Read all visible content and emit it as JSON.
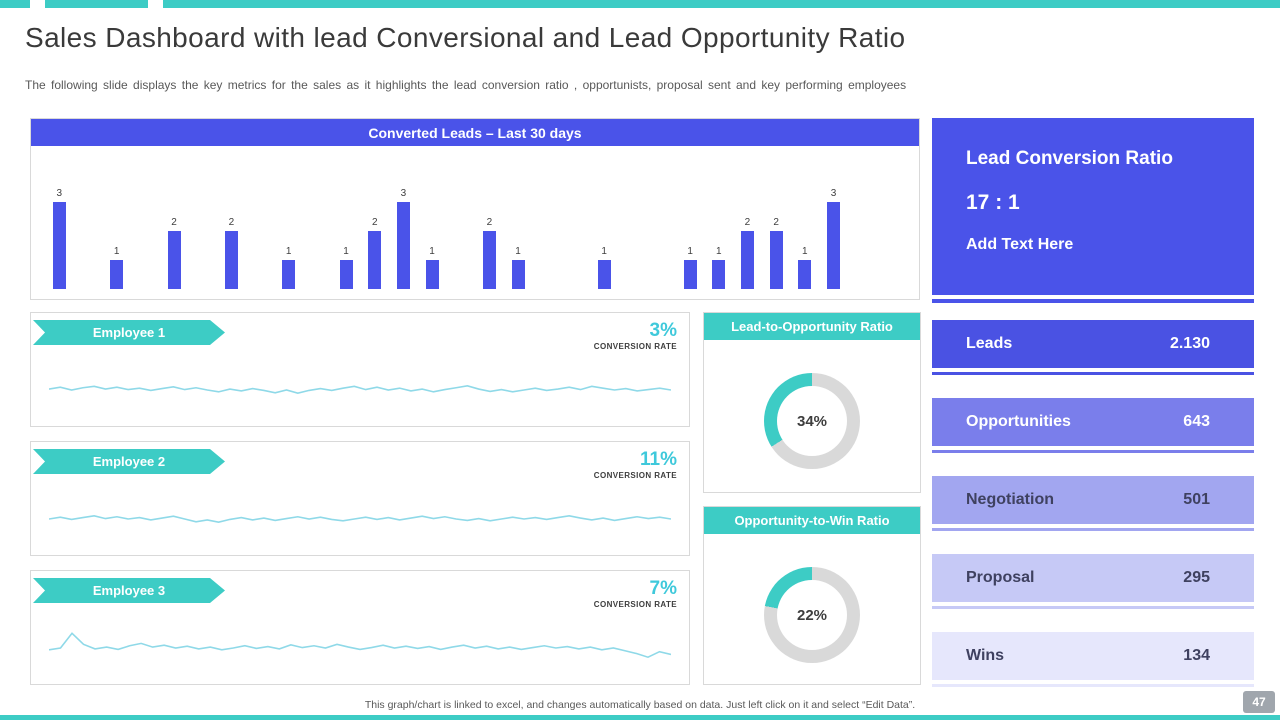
{
  "slide": {
    "title": "Sales Dashboard with lead Conversional and Lead Opportunity Ratio",
    "subtitle": "The following slide displays the key metrics for the sales as it highlights the lead conversion ratio , opportunists, proposal sent and key performing employees",
    "footer_note": "This graph/chart is linked to excel, and changes automatically based on data. Just left click on it and select “Edit Data”.",
    "page_number": "47"
  },
  "colors": {
    "accent_teal": "#3DCCC5",
    "accent_blue": "#4A53E9",
    "sparkline": "#8FD9E8",
    "rate_text": "#3FC9DB",
    "gauge_track": "#D9D9D9"
  },
  "chart_data": [
    {
      "id": "converted-leads",
      "type": "bar",
      "title": "Converted Leads – Last 30 days",
      "x_unit": "day (last 30 days, unlabeled)",
      "values": [
        3,
        0,
        1,
        0,
        2,
        0,
        2,
        0,
        1,
        0,
        1,
        2,
        3,
        1,
        0,
        2,
        1,
        0,
        0,
        1,
        0,
        0,
        1,
        1,
        2,
        2,
        1,
        3,
        0,
        0
      ],
      "ylim": [
        0,
        3
      ],
      "bar_color": "#4A53E9",
      "data_labels": true,
      "grid": false,
      "legend": false
    },
    {
      "id": "employee-1",
      "type": "line",
      "name": "Employee 1",
      "metric_value": "3%",
      "metric_label": "CONVERSION RATE",
      "line_color": "#8FD9E8",
      "values": [
        52,
        56,
        50,
        55,
        58,
        52,
        56,
        51,
        54,
        49,
        53,
        57,
        51,
        55,
        50,
        46,
        52,
        48,
        53,
        49,
        44,
        50,
        43,
        49,
        53,
        49,
        54,
        58,
        51,
        56,
        50,
        54,
        48,
        52,
        46,
        51,
        55,
        59,
        52,
        47,
        51,
        46,
        50,
        54,
        49,
        52,
        56,
        51,
        58,
        54,
        50,
        53,
        48,
        51,
        54,
        50
      ]
    },
    {
      "id": "employee-2",
      "type": "line",
      "name": "Employee 2",
      "metric_value": "11%",
      "metric_label": "CONVERSION RATE",
      "line_color": "#8FD9E8",
      "values": [
        50,
        54,
        49,
        53,
        57,
        51,
        55,
        50,
        53,
        48,
        52,
        56,
        50,
        44,
        48,
        43,
        49,
        53,
        48,
        52,
        47,
        51,
        55,
        50,
        54,
        49,
        46,
        50,
        54,
        49,
        53,
        48,
        52,
        56,
        51,
        55,
        50,
        47,
        51,
        46,
        50,
        54,
        50,
        53,
        49,
        53,
        57,
        52,
        48,
        52,
        47,
        51,
        55,
        51,
        54,
        50
      ]
    },
    {
      "id": "employee-3",
      "type": "line",
      "name": "Employee 3",
      "metric_value": "7%",
      "metric_label": "CONVERSION RATE",
      "line_color": "#8FD9E8",
      "values": [
        46,
        50,
        82,
        58,
        48,
        52,
        47,
        55,
        60,
        52,
        56,
        50,
        54,
        48,
        52,
        46,
        50,
        55,
        49,
        53,
        48,
        57,
        51,
        55,
        50,
        58,
        52,
        47,
        51,
        56,
        50,
        54,
        49,
        53,
        47,
        52,
        56,
        50,
        54,
        48,
        52,
        47,
        51,
        55,
        50,
        53,
        48,
        52,
        46,
        50,
        44,
        38,
        30,
        42,
        36
      ]
    },
    {
      "id": "lead-to-opportunity",
      "type": "gauge",
      "title": "Lead-to-Opportunity Ratio",
      "percent": 34,
      "display": "34%",
      "arc_color": "#3DCCC5",
      "track_color": "#D9D9D9"
    },
    {
      "id": "opportunity-to-win",
      "type": "gauge",
      "title": "Opportunity-to-Win Ratio",
      "percent": 22,
      "display": "22%",
      "arc_color": "#3DCCC5",
      "track_color": "#D9D9D9"
    }
  ],
  "kpi": {
    "title": "Lead Conversion Ratio",
    "value": "17 : 1",
    "note": "Add Text Here"
  },
  "funnel": [
    {
      "label": "Leads",
      "value": "2.130",
      "bg": "#4A52E3",
      "text": "#FFFFFF"
    },
    {
      "label": "Opportunities",
      "value": "643",
      "bg": "#7A7EEB",
      "text": "#FFFFFF"
    },
    {
      "label": "Negotiation",
      "value": "501",
      "bg": "#A2A6F0",
      "text": "#3F4160"
    },
    {
      "label": "Proposal",
      "value": "295",
      "bg": "#C6C9F6",
      "text": "#3F4160"
    },
    {
      "label": "Wins",
      "value": "134",
      "bg": "#E6E7FC",
      "text": "#3F4160"
    }
  ]
}
